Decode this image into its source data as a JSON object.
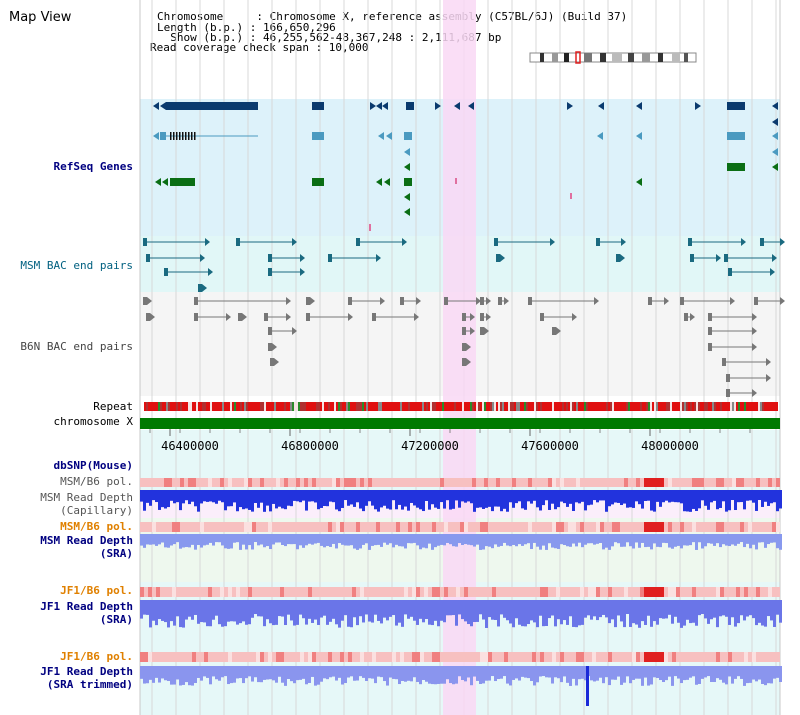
{
  "panel_title": "Map View",
  "header": {
    "chromosome_line": "Chromosome     : Chromosome X, reference assembly (C57BL/6J) (Build 37)",
    "length_line": "Length (b.p.) : 166,650,296",
    "show_line": "  Show (b.p.) : 46,255,562-48,367,248 : 2,111,687 bp",
    "coverage_line": "Read coverage check span : 10,000"
  },
  "tracks": {
    "refseq": "RefSeq Genes",
    "msm_bac": "MSM BAC end pairs",
    "b6n_bac": "B6N BAC end pairs",
    "repeat": "Repeat",
    "chromosome": "chromosome X",
    "dbsnp": "dbSNP(Mouse)",
    "msm_b6_pol_1": "MSM/B6 pol.",
    "msm_depth_cap_1": "MSM Read Depth",
    "msm_depth_cap_2": "(Capillary)",
    "msm_b6_pol_2": "MSM/B6 pol.",
    "msm_depth_sra_1": "MSM Read Depth",
    "msm_depth_sra_2": "(SRA)",
    "jf1_b6_pol_1": "JF1/B6 pol.",
    "jf1_depth_sra_1": "JF1 Read Depth",
    "jf1_depth_sra_2": "(SRA)",
    "jf1_b6_pol_2": "JF1/B6 pol.",
    "jf1_depth_trim_1": "JF1 Read Depth",
    "jf1_depth_trim_2": "(SRA trimmed)"
  },
  "axis_ticks": [
    "46400000",
    "46800000",
    "47200000",
    "47600000",
    "48000000"
  ],
  "colors": {
    "refseq_bg": "#ddf2fa",
    "msm_bac_bg": "#e1f7f7",
    "b6n_bg": "#f5f5f5",
    "chromosome_bar": "#007a00",
    "highlight": "#f9d8f4",
    "label_blue": "#000080",
    "label_teal": "#006080",
    "label_orange": "#e08000"
  }
}
